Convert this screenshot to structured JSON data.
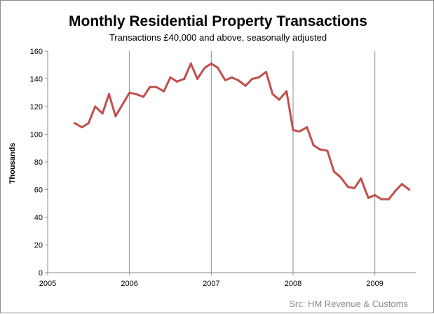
{
  "chart_data": {
    "type": "line",
    "title": "Monthly Residential Property Transactions",
    "subtitle": "Transactions £40,000 and above, seasonally adjusted",
    "ylabel": "Thousands",
    "xlabel": "",
    "ylim": [
      0,
      160
    ],
    "yticks": [
      0,
      20,
      40,
      60,
      80,
      100,
      120,
      140,
      160
    ],
    "yticklabels": [
      "0",
      "20",
      "40",
      "60",
      "80",
      "100",
      "120",
      "140",
      "160"
    ],
    "xlim": [
      2005,
      2009.5
    ],
    "xticks": [
      2005,
      2006,
      2007,
      2008,
      2009
    ],
    "xticklabels": [
      "2005",
      "2006",
      "2007",
      "2008",
      "2009"
    ],
    "grid": "vertical",
    "series": [
      {
        "name": "Transactions",
        "color": "#c0504d",
        "x": [
          2005.33,
          2005.42,
          2005.5,
          2005.58,
          2005.67,
          2005.75,
          2005.83,
          2005.92,
          2006.0,
          2006.08,
          2006.17,
          2006.25,
          2006.33,
          2006.42,
          2006.5,
          2006.58,
          2006.67,
          2006.75,
          2006.83,
          2006.92,
          2007.0,
          2007.08,
          2007.17,
          2007.25,
          2007.33,
          2007.42,
          2007.5,
          2007.58,
          2007.67,
          2007.75,
          2007.83,
          2007.92,
          2008.0,
          2008.08,
          2008.17,
          2008.25,
          2008.33,
          2008.42,
          2008.5,
          2008.58,
          2008.67,
          2008.75,
          2008.83,
          2008.92,
          2009.0,
          2009.08,
          2009.17,
          2009.25,
          2009.33,
          2009.42
        ],
        "values": [
          108,
          105,
          108,
          120,
          115,
          129,
          113,
          122,
          130,
          129,
          127,
          134,
          134,
          131,
          141,
          138,
          140,
          151,
          140,
          148,
          151,
          148,
          139,
          141,
          139,
          135,
          140,
          141,
          145,
          129,
          125,
          131,
          103,
          102,
          105,
          92,
          89,
          88,
          73,
          69,
          62,
          61,
          68,
          54,
          56,
          53,
          53,
          59,
          64,
          60
        ]
      }
    ],
    "source": "Src: HM Revenue & Customs"
  }
}
